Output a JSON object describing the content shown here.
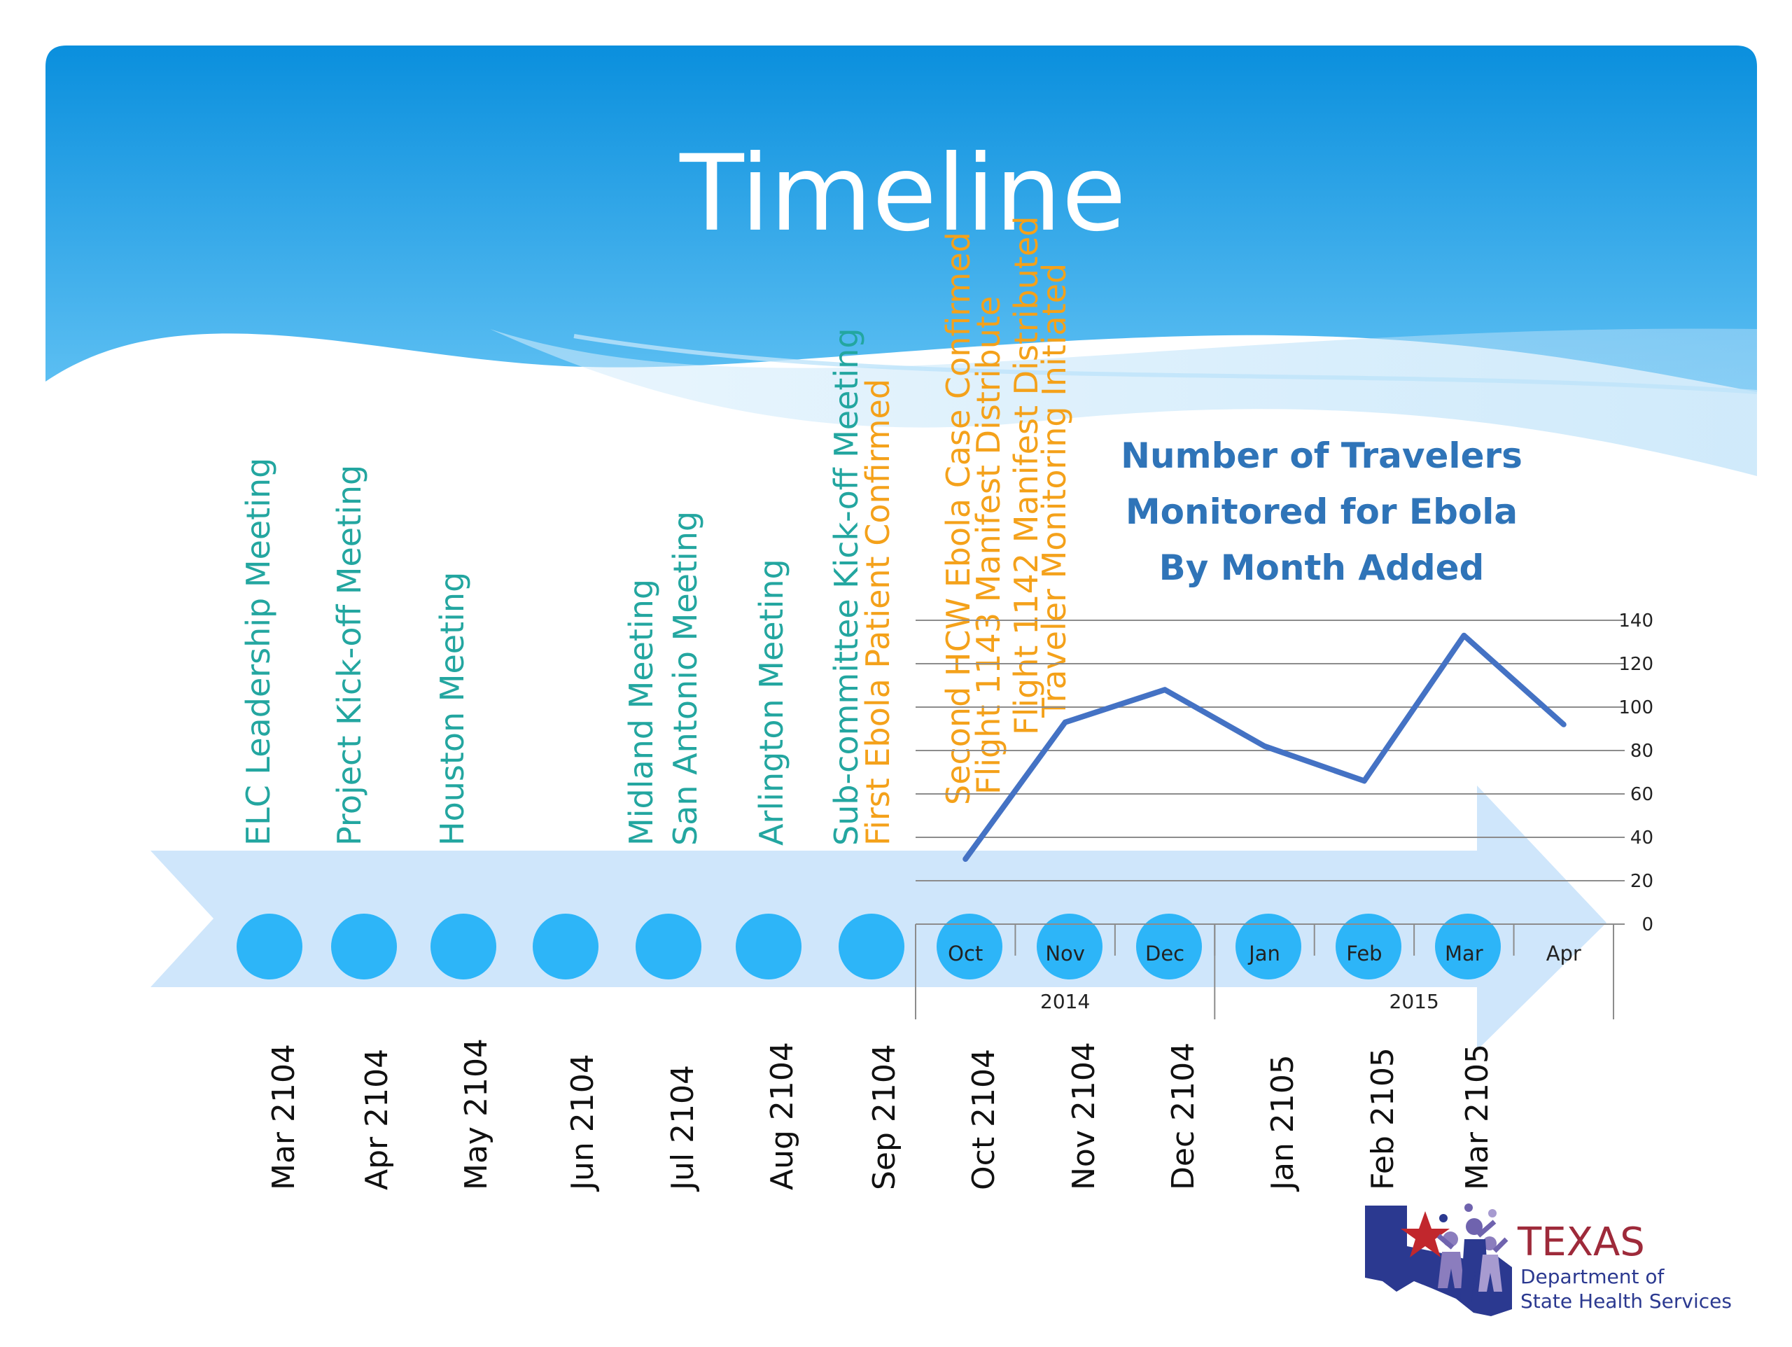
{
  "slide": {
    "title": "Timeline"
  },
  "events": [
    {
      "label": "ELC Leadership Meeting",
      "color": "#23A6A0"
    },
    {
      "label": "Project Kick-off Meeting",
      "color": "#23A6A0"
    },
    {
      "label": "Houston Meeting",
      "color": "#23A6A0"
    },
    {
      "label": "Midland Meeting",
      "color": "#23A6A0"
    },
    {
      "label": "San Antonio Meeting",
      "color": "#23A6A0"
    },
    {
      "label": "Arlington Meeting",
      "color": "#23A6A0"
    },
    {
      "label": "Sub-committee Kick-off Meeting",
      "color": "#23A6A0"
    },
    {
      "label": "First Ebola Patient Confirmed",
      "color": "#F4A11A"
    },
    {
      "label": "Second HCW Ebola Case Confirmed",
      "color": "#F4A11A"
    },
    {
      "label": "Flight 1143 Manifest Distribute",
      "color": "#F4A11A"
    },
    {
      "label": "Flight 1142 Manifest Distributed",
      "color": "#F4A11A"
    },
    {
      "label": "Traveler Monitoring Initiated",
      "color": "#F4A11A"
    }
  ],
  "timeline_dates": [
    "Mar 2104",
    "Apr 2104",
    "May 2104",
    "Jun 2104",
    "Jul 2104",
    "Aug 2104",
    "Sep 2104",
    "Oct 2104",
    "Nov 2104",
    "Dec 2104",
    "Jan 2105",
    "Feb 2105",
    "Mar 2105"
  ],
  "chart_data": {
    "type": "line",
    "title_lines": [
      "Number of Travelers",
      "Monitored for Ebola",
      "By Month Added"
    ],
    "categories": [
      "Oct",
      "Nov",
      "Dec",
      "Jan",
      "Feb",
      "Mar",
      "Apr"
    ],
    "year_groups": [
      {
        "label": "2014",
        "months": [
          "Oct",
          "Nov",
          "Dec"
        ]
      },
      {
        "label": "2015",
        "months": [
          "Jan",
          "Feb",
          "Mar",
          "Apr"
        ]
      }
    ],
    "series": [
      {
        "values": [
          30,
          93,
          108,
          82,
          66,
          133,
          92
        ],
        "color": "#4472C4"
      }
    ],
    "ylim": [
      0,
      140
    ],
    "yticks": [
      "0",
      "20",
      "40",
      "60",
      "80",
      "100",
      "120",
      "140"
    ],
    "axis_position": "right",
    "grid": true
  },
  "logo": {
    "name": "TEXAS",
    "line2": "Department of",
    "line3": "State Health Services"
  },
  "colors": {
    "header_blue": "#0A8FDD",
    "arrow": "#CFE6FB",
    "circle": "#2DB5F8",
    "line": "#4472C4"
  }
}
